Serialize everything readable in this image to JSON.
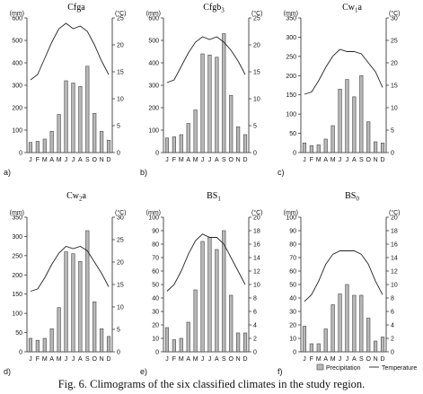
{
  "caption": "Fig. 6. Climograms of the six classified climates in the study region.",
  "legend": {
    "precipitation_label": "Precipitation",
    "temperature_label": "Temperature"
  },
  "chart_data": [
    {
      "type": "bar",
      "title": "Cfga",
      "panel_letter": "a)",
      "ylabel_left": "(mm)",
      "ylabel_right": "(°C)",
      "ylim_left": [
        0,
        600
      ],
      "ylim_right": [
        0,
        25
      ],
      "yticks_left": [
        0,
        100,
        200,
        300,
        400,
        500,
        600
      ],
      "yticks_right": [
        0,
        5,
        10,
        15,
        20,
        25
      ],
      "categories": [
        "J",
        "F",
        "M",
        "A",
        "M",
        "J",
        "J",
        "A",
        "S",
        "O",
        "N",
        "D"
      ],
      "series": [
        {
          "name": "Precipitation",
          "type": "bar",
          "axis": "left",
          "values": [
            45,
            50,
            60,
            95,
            170,
            320,
            310,
            295,
            385,
            175,
            95,
            55
          ]
        },
        {
          "name": "Temperature",
          "type": "line",
          "axis": "right",
          "values": [
            13.5,
            14.5,
            17.5,
            20.5,
            23,
            24,
            23,
            23.5,
            22.5,
            20,
            17,
            14.5
          ]
        }
      ]
    },
    {
      "type": "bar",
      "title": "Cfgb3",
      "panel_letter": "b)",
      "ylabel_left": "(mm)",
      "ylabel_right": "(°C)",
      "ylim_left": [
        0,
        600
      ],
      "ylim_right": [
        0,
        25
      ],
      "yticks_left": [
        0,
        100,
        200,
        300,
        400,
        500,
        600
      ],
      "yticks_right": [
        0,
        5,
        10,
        15,
        20,
        25
      ],
      "categories": [
        "J",
        "F",
        "M",
        "A",
        "M",
        "J",
        "J",
        "A",
        "S",
        "O",
        "N",
        "D"
      ],
      "series": [
        {
          "name": "Precipitation",
          "type": "bar",
          "axis": "left",
          "values": [
            65,
            70,
            80,
            130,
            190,
            440,
            435,
            425,
            530,
            255,
            115,
            80
          ]
        },
        {
          "name": "Temperature",
          "type": "line",
          "axis": "right",
          "values": [
            13,
            13.5,
            16,
            18.5,
            20.5,
            21.5,
            21,
            21.5,
            20.5,
            19,
            17,
            14.5
          ]
        }
      ]
    },
    {
      "type": "bar",
      "title": "Cw1a",
      "panel_letter": "c)",
      "ylabel_left": "(mm)",
      "ylabel_right": "(°C)",
      "ylim_left": [
        0,
        350
      ],
      "ylim_right": [
        0,
        30
      ],
      "yticks_left": [
        0,
        50,
        100,
        150,
        200,
        250,
        300,
        350
      ],
      "yticks_right": [
        0,
        5,
        10,
        15,
        20,
        25,
        30
      ],
      "categories": [
        "J",
        "F",
        "M",
        "A",
        "M",
        "J",
        "J",
        "A",
        "S",
        "O",
        "N",
        "D"
      ],
      "series": [
        {
          "name": "Precipitation",
          "type": "bar",
          "axis": "left",
          "values": [
            25,
            18,
            20,
            35,
            70,
            165,
            190,
            145,
            200,
            80,
            28,
            25
          ]
        },
        {
          "name": "Temperature",
          "type": "line",
          "axis": "right",
          "values": [
            13,
            13.5,
            16,
            19,
            21.5,
            23,
            22.5,
            22.5,
            22,
            20,
            18,
            14.5
          ]
        }
      ]
    },
    {
      "type": "bar",
      "title": "Cw2a",
      "panel_letter": "d)",
      "ylabel_left": "(mm)",
      "ylabel_right": "(°C)",
      "ylim_left": [
        0,
        350
      ],
      "ylim_right": [
        0,
        30
      ],
      "yticks_left": [
        0,
        50,
        100,
        150,
        200,
        250,
        300,
        350
      ],
      "yticks_right": [
        0,
        5,
        10,
        15,
        20,
        25,
        30
      ],
      "categories": [
        "J",
        "F",
        "M",
        "A",
        "M",
        "J",
        "J",
        "A",
        "S",
        "O",
        "N",
        "D"
      ],
      "series": [
        {
          "name": "Precipitation",
          "type": "bar",
          "axis": "left",
          "values": [
            35,
            30,
            35,
            60,
            115,
            260,
            255,
            235,
            315,
            130,
            60,
            40
          ]
        },
        {
          "name": "Temperature",
          "type": "line",
          "axis": "right",
          "values": [
            13.5,
            14,
            16.5,
            19.5,
            22,
            23.5,
            23,
            23.5,
            22.5,
            20,
            17.5,
            14.5
          ]
        }
      ]
    },
    {
      "type": "bar",
      "title": "BS1",
      "panel_letter": "e)",
      "ylabel_left": "(mm)",
      "ylabel_right": "(°C)",
      "ylim_left": [
        0,
        100
      ],
      "ylim_right": [
        0,
        20
      ],
      "yticks_left": [
        0,
        10,
        20,
        30,
        40,
        50,
        60,
        70,
        80,
        90,
        100
      ],
      "yticks_right": [
        0,
        2,
        4,
        6,
        8,
        10,
        12,
        14,
        16,
        18,
        20
      ],
      "categories": [
        "J",
        "F",
        "M",
        "A",
        "M",
        "J",
        "J",
        "A",
        "S",
        "O",
        "N",
        "D"
      ],
      "series": [
        {
          "name": "Precipitation",
          "type": "bar",
          "axis": "left",
          "values": [
            18,
            9,
            10,
            22,
            46,
            82,
            85,
            76,
            90,
            42,
            14,
            14
          ]
        },
        {
          "name": "Temperature",
          "type": "line",
          "axis": "right",
          "values": [
            9,
            10,
            12,
            14.5,
            16.5,
            17.5,
            17,
            17,
            16,
            14,
            12,
            10
          ]
        }
      ]
    },
    {
      "type": "bar",
      "title": "BS0",
      "panel_letter": "f)",
      "ylabel_left": "(mm)",
      "ylabel_right": "(°C)",
      "ylim_left": [
        0,
        100
      ],
      "ylim_right": [
        0,
        20
      ],
      "yticks_left": [
        0,
        10,
        20,
        30,
        40,
        50,
        60,
        70,
        80,
        90,
        100
      ],
      "yticks_right": [
        0,
        2,
        4,
        6,
        8,
        10,
        12,
        14,
        16,
        18,
        20
      ],
      "categories": [
        "J",
        "F",
        "M",
        "A",
        "M",
        "J",
        "J",
        "A",
        "S",
        "O",
        "N",
        "D"
      ],
      "series": [
        {
          "name": "Precipitation",
          "type": "bar",
          "axis": "left",
          "values": [
            19,
            6,
            6,
            17,
            35,
            43,
            50,
            42,
            42,
            25,
            8,
            11
          ]
        },
        {
          "name": "Temperature",
          "type": "line",
          "axis": "right",
          "values": [
            7.5,
            8.5,
            10.5,
            13,
            14.5,
            15,
            15,
            15,
            14.5,
            13,
            10.5,
            8.5
          ]
        }
      ]
    }
  ]
}
